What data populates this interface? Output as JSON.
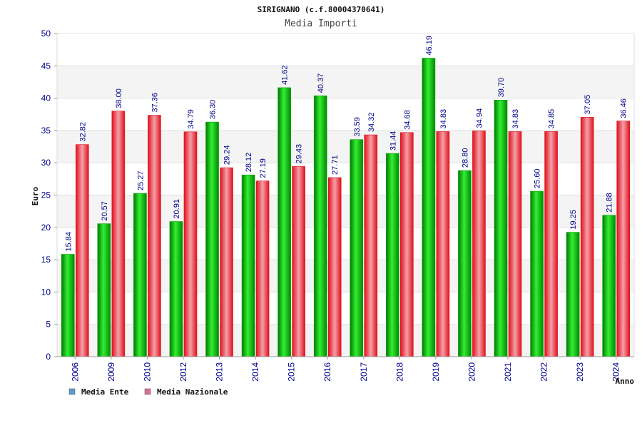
{
  "chart_data": {
    "type": "bar",
    "title": "SIRIGNANO (c.f.80004370641)",
    "subtitle": "Media Importi",
    "xlabel": "Anno",
    "ylabel": "Euro",
    "ylim": [
      0,
      50
    ],
    "yticks": [
      0,
      5,
      10,
      15,
      20,
      25,
      30,
      35,
      40,
      45,
      50
    ],
    "grid": true,
    "legend_position": "bottom-left",
    "categories": [
      "2006",
      "2009",
      "2010",
      "2012",
      "2013",
      "2014",
      "2015",
      "2016",
      "2017",
      "2018",
      "2019",
      "2020",
      "2021",
      "2022",
      "2023",
      "2024"
    ],
    "series": [
      {
        "name": "Media Ente",
        "legend_color": "#5b9bd5",
        "color": "#00a000",
        "values": [
          15.84,
          20.57,
          25.27,
          20.91,
          36.3,
          28.12,
          41.62,
          40.37,
          33.59,
          31.44,
          46.19,
          28.8,
          39.7,
          25.6,
          19.25,
          21.88
        ],
        "labels": [
          "15.84",
          "20.57",
          "25.27",
          "20.91",
          "36.30",
          "28.12",
          "41.62",
          "40.37",
          "33.59",
          "31.44",
          "46.19",
          "28.80",
          "39.70",
          "25.60",
          "19.25",
          "21.88"
        ]
      },
      {
        "name": "Media Nazionale",
        "legend_color": "#d87093",
        "color": "#e0101c",
        "values": [
          32.82,
          38.0,
          37.36,
          34.79,
          29.24,
          27.19,
          29.43,
          27.71,
          34.32,
          34.68,
          34.83,
          34.94,
          34.83,
          34.85,
          37.05,
          36.46
        ],
        "labels": [
          "32.82",
          "38.00",
          "37.36",
          "34.79",
          "29.24",
          "27.19",
          "29.43",
          "27.71",
          "34.32",
          "34.68",
          "34.83",
          "34.94",
          "34.83",
          "34.85",
          "37.05",
          "36.46"
        ]
      }
    ]
  }
}
